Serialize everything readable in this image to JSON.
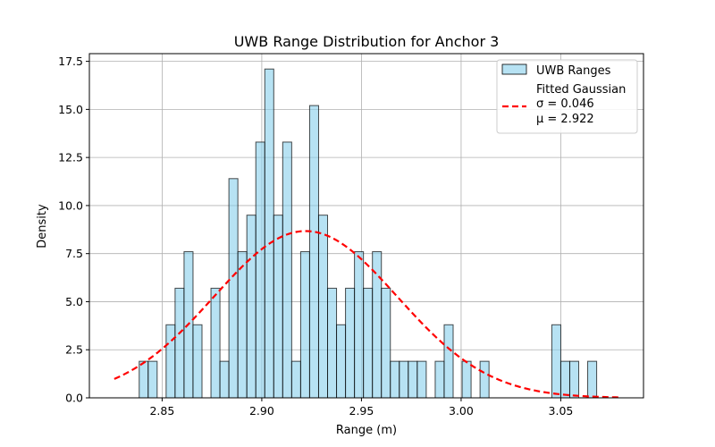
{
  "chart_data": {
    "type": "bar",
    "title": "UWB Range Distribution for Anchor 3",
    "xlabel": "Range (m)",
    "ylabel": "Density",
    "xlim": [
      2.8135,
      3.0915
    ],
    "ylim": [
      0,
      17.9
    ],
    "xticks": [
      2.85,
      2.9,
      2.95,
      3.0,
      3.05
    ],
    "xtick_labels": [
      "2.85",
      "2.90",
      "2.95",
      "3.00",
      "3.05"
    ],
    "yticks": [
      0,
      2.5,
      5,
      7.5,
      10,
      12.5,
      15,
      17.5
    ],
    "ytick_labels": [
      "0.0",
      "2.5",
      "5.0",
      "7.5",
      "10.0",
      "12.5",
      "15.0",
      "17.5"
    ],
    "grid": true,
    "legend_position": "top-right",
    "histogram": {
      "name": "UWB Ranges",
      "bin_start": 2.8385,
      "bin_width": 0.0045,
      "values": [
        1.9,
        1.9,
        0,
        3.8,
        5.7,
        7.6,
        3.8,
        0,
        5.7,
        1.9,
        11.4,
        7.6,
        9.5,
        13.3,
        17.1,
        9.5,
        13.3,
        1.9,
        7.6,
        15.2,
        9.5,
        5.7,
        3.8,
        5.7,
        7.6,
        5.7,
        7.6,
        5.7,
        1.9,
        1.9,
        1.9,
        1.9,
        0,
        1.9,
        3.8,
        0,
        1.9,
        0,
        1.9,
        0,
        0,
        0,
        0,
        0,
        0,
        0,
        3.8,
        1.9,
        1.9,
        0,
        1.9
      ],
      "fill_color": "#87ceeb",
      "edge_color": "#000000"
    },
    "gaussian": {
      "name": "Fitted Gaussian",
      "sigma_label": "σ = 0.046",
      "mu_label": "μ = 2.922",
      "sigma": 0.046,
      "mu": 2.922,
      "x_range": [
        2.826,
        3.08
      ],
      "color": "#ff0000"
    }
  }
}
